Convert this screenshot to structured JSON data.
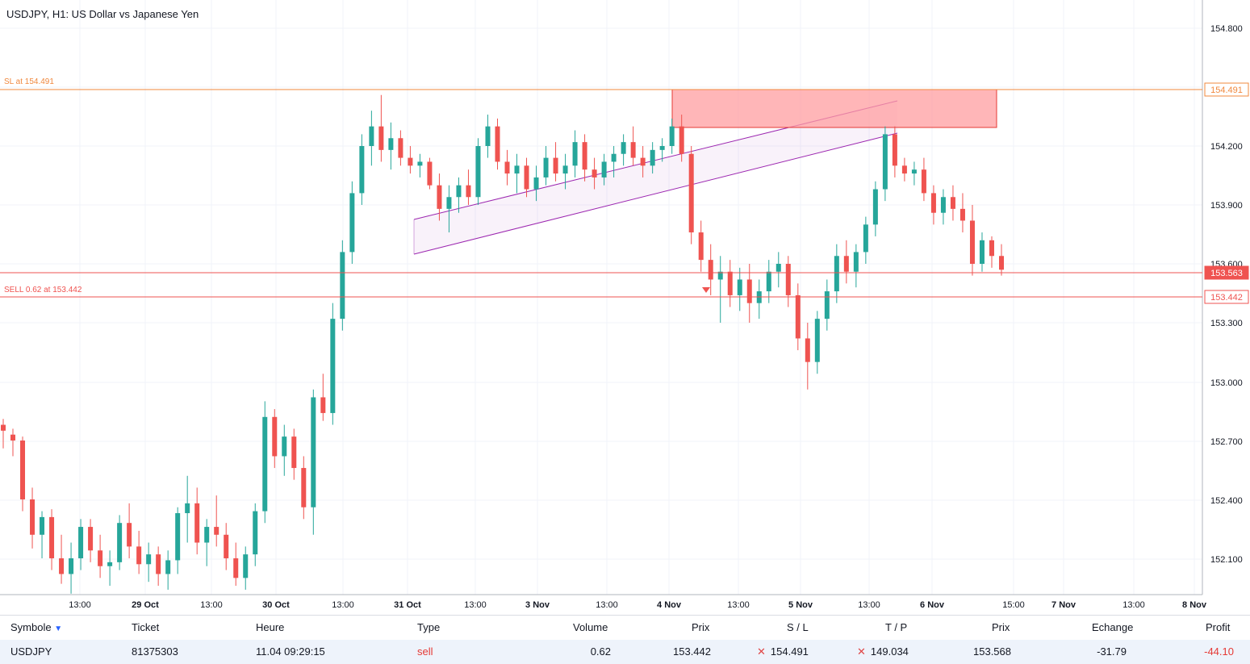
{
  "chart": {
    "title": "USDJPY, H1: US Dollar vs Japanese Yen",
    "sl_label": "SL at 154.491",
    "sell_label": "SELL 0.62 at 153.442",
    "price_badges": {
      "sl": "154.491",
      "current": "153.563",
      "sell": "153.442"
    },
    "price_axis": [
      "154.800",
      "154.200",
      "153.900",
      "153.600",
      "153.300",
      "153.000",
      "152.700",
      "152.400",
      "152.100"
    ],
    "time_axis": [
      "13:00",
      "29 Oct",
      "13:00",
      "30 Oct",
      "13:00",
      "31 Oct",
      "13:00",
      "3 Nov",
      "13:00",
      "4 Nov",
      "13:00",
      "5 Nov",
      "13:00",
      "6 Nov",
      "15:00",
      "7 Nov",
      "13:00",
      "8 Nov"
    ],
    "colors": {
      "up": "#26a69a",
      "down": "#ef5350",
      "sl_line": "#f0883e",
      "sell_line": "#ef5350",
      "channel": "#9c27b0",
      "zone": "#ff9ea0"
    }
  },
  "chart_data": {
    "type": "candlestick",
    "symbol": "USDJPY",
    "timeframe": "H1",
    "ylim": [
      151.92,
      154.95
    ],
    "levels": {
      "stop_loss": 154.491,
      "sell_entry": 153.442,
      "current": 153.563
    },
    "candles": [
      [
        152.78,
        152.81,
        152.66,
        152.75
      ],
      [
        152.73,
        152.76,
        152.62,
        152.7
      ],
      [
        152.7,
        152.72,
        152.34,
        152.4
      ],
      [
        152.4,
        152.46,
        152.15,
        152.22
      ],
      [
        152.22,
        152.34,
        152.1,
        152.31
      ],
      [
        152.31,
        152.35,
        152.04,
        152.1
      ],
      [
        152.1,
        152.22,
        151.97,
        152.02
      ],
      [
        152.02,
        152.18,
        151.92,
        152.1
      ],
      [
        152.1,
        152.3,
        152.04,
        152.26
      ],
      [
        152.26,
        152.3,
        152.08,
        152.14
      ],
      [
        152.14,
        152.22,
        152.0,
        152.06
      ],
      [
        152.06,
        152.14,
        151.96,
        152.08
      ],
      [
        152.08,
        152.32,
        152.04,
        152.28
      ],
      [
        152.28,
        152.38,
        152.1,
        152.16
      ],
      [
        152.16,
        152.24,
        152.02,
        152.07
      ],
      [
        152.07,
        152.18,
        151.98,
        152.12
      ],
      [
        152.12,
        152.16,
        151.96,
        152.02
      ],
      [
        152.02,
        152.14,
        151.94,
        152.09
      ],
      [
        152.09,
        152.36,
        152.02,
        152.33
      ],
      [
        152.33,
        152.52,
        152.18,
        152.38
      ],
      [
        152.38,
        152.46,
        152.12,
        152.18
      ],
      [
        152.18,
        152.3,
        152.06,
        152.26
      ],
      [
        152.26,
        152.42,
        152.16,
        152.22
      ],
      [
        152.22,
        152.28,
        152.04,
        152.1
      ],
      [
        152.1,
        152.18,
        151.96,
        152.0
      ],
      [
        152.0,
        152.16,
        151.94,
        152.12
      ],
      [
        152.12,
        152.38,
        152.06,
        152.34
      ],
      [
        152.34,
        152.9,
        152.28,
        152.82
      ],
      [
        152.82,
        152.86,
        152.56,
        152.62
      ],
      [
        152.62,
        152.78,
        152.52,
        152.72
      ],
      [
        152.72,
        152.76,
        152.5,
        152.56
      ],
      [
        152.56,
        152.62,
        152.3,
        152.36
      ],
      [
        152.36,
        152.96,
        152.22,
        152.92
      ],
      [
        152.92,
        153.04,
        152.8,
        152.84
      ],
      [
        152.84,
        153.4,
        152.78,
        153.32
      ],
      [
        153.32,
        153.72,
        153.26,
        153.66
      ],
      [
        153.66,
        154.02,
        153.6,
        153.96
      ],
      [
        153.96,
        154.26,
        153.9,
        154.2
      ],
      [
        154.2,
        154.38,
        154.1,
        154.3
      ],
      [
        154.3,
        154.46,
        154.12,
        154.18
      ],
      [
        154.18,
        154.32,
        154.08,
        154.24
      ],
      [
        154.24,
        154.28,
        154.1,
        154.14
      ],
      [
        154.14,
        154.2,
        154.06,
        154.1
      ],
      [
        154.1,
        154.16,
        154.04,
        154.12
      ],
      [
        154.12,
        154.14,
        153.98,
        154.0
      ],
      [
        154.0,
        154.06,
        153.82,
        153.88
      ],
      [
        153.88,
        154.0,
        153.76,
        153.94
      ],
      [
        153.94,
        154.04,
        153.86,
        154.0
      ],
      [
        154.0,
        154.08,
        153.9,
        153.94
      ],
      [
        153.94,
        154.24,
        153.9,
        154.2
      ],
      [
        154.2,
        154.36,
        154.14,
        154.3
      ],
      [
        154.3,
        154.34,
        154.08,
        154.12
      ],
      [
        154.12,
        154.18,
        154.0,
        154.06
      ],
      [
        154.06,
        154.16,
        153.96,
        154.1
      ],
      [
        154.1,
        154.14,
        153.94,
        153.98
      ],
      [
        153.98,
        154.1,
        153.92,
        154.04
      ],
      [
        154.04,
        154.2,
        154.0,
        154.14
      ],
      [
        154.14,
        154.22,
        154.02,
        154.06
      ],
      [
        154.06,
        154.16,
        153.98,
        154.1
      ],
      [
        154.1,
        154.28,
        154.04,
        154.22
      ],
      [
        154.22,
        154.26,
        154.02,
        154.08
      ],
      [
        154.08,
        154.14,
        153.98,
        154.04
      ],
      [
        154.04,
        154.16,
        154.0,
        154.12
      ],
      [
        154.12,
        154.2,
        154.04,
        154.16
      ],
      [
        154.16,
        154.26,
        154.1,
        154.22
      ],
      [
        154.22,
        154.3,
        154.1,
        154.14
      ],
      [
        154.14,
        154.2,
        154.04,
        154.1
      ],
      [
        154.1,
        154.22,
        154.06,
        154.18
      ],
      [
        154.18,
        154.24,
        154.12,
        154.2
      ],
      [
        154.2,
        154.34,
        154.16,
        154.3
      ],
      [
        154.3,
        154.36,
        154.12,
        154.16
      ],
      [
        154.16,
        154.2,
        153.7,
        153.76
      ],
      [
        153.76,
        153.82,
        153.56,
        153.62
      ],
      [
        153.62,
        153.7,
        153.44,
        153.52
      ],
      [
        153.52,
        153.64,
        153.3,
        153.56
      ],
      [
        153.56,
        153.62,
        153.38,
        153.44
      ],
      [
        153.44,
        153.58,
        153.36,
        153.52
      ],
      [
        153.52,
        153.6,
        153.3,
        153.4
      ],
      [
        153.4,
        153.52,
        153.32,
        153.46
      ],
      [
        153.46,
        153.62,
        153.4,
        153.56
      ],
      [
        153.56,
        153.66,
        153.48,
        153.6
      ],
      [
        153.6,
        153.64,
        153.38,
        153.44
      ],
      [
        153.44,
        153.5,
        153.16,
        153.22
      ],
      [
        153.22,
        153.3,
        152.96,
        153.1
      ],
      [
        153.1,
        153.36,
        153.04,
        153.32
      ],
      [
        153.32,
        153.52,
        153.26,
        153.46
      ],
      [
        153.46,
        153.7,
        153.4,
        153.64
      ],
      [
        153.64,
        153.72,
        153.5,
        153.56
      ],
      [
        153.56,
        153.7,
        153.48,
        153.66
      ],
      [
        153.66,
        153.84,
        153.6,
        153.8
      ],
      [
        153.8,
        154.02,
        153.74,
        153.98
      ],
      [
        153.98,
        154.3,
        153.92,
        154.26
      ],
      [
        154.26,
        154.3,
        154.04,
        154.1
      ],
      [
        154.1,
        154.14,
        154.02,
        154.06
      ],
      [
        154.06,
        154.12,
        154.0,
        154.08
      ],
      [
        154.08,
        154.14,
        153.92,
        153.96
      ],
      [
        153.96,
        154.0,
        153.8,
        153.86
      ],
      [
        153.86,
        153.98,
        153.8,
        153.94
      ],
      [
        153.94,
        154.0,
        153.82,
        153.88
      ],
      [
        153.88,
        153.96,
        153.76,
        153.82
      ],
      [
        153.82,
        153.9,
        153.54,
        153.6
      ],
      [
        153.6,
        153.76,
        153.56,
        153.72
      ],
      [
        153.72,
        153.74,
        153.58,
        153.64
      ],
      [
        153.64,
        153.7,
        153.54,
        153.57
      ]
    ]
  },
  "positions": {
    "headers": {
      "symbol": "Symbole",
      "ticket": "Ticket",
      "time": "Heure",
      "type": "Type",
      "volume": "Volume",
      "price": "Prix",
      "sl": "S / L",
      "tp": "T / P",
      "price2": "Prix",
      "swap": "Echange",
      "profit": "Profit"
    },
    "row": {
      "symbol": "USDJPY",
      "ticket": "81375303",
      "time": "11.04 09:29:15",
      "type": "sell",
      "volume": "0.62",
      "price": "153.442",
      "sl": "154.491",
      "tp": "149.034",
      "price2": "153.568",
      "swap": "-31.79",
      "profit": "-44.10"
    }
  }
}
